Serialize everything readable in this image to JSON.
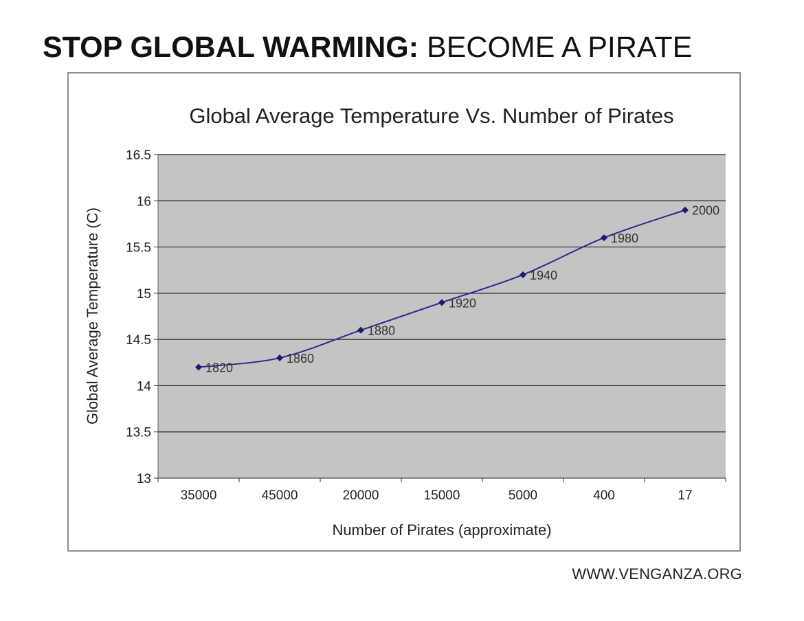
{
  "headline": {
    "bold": "STOP GLOBAL WARMING:",
    "light": " BECOME A PIRATE"
  },
  "credit": "WWW.VENGANZA.ORG",
  "chart_data": {
    "type": "line",
    "title": "Global Average Temperature Vs. Number of Pirates",
    "xlabel": "Number of Pirates (approximate)",
    "ylabel": "Global Average Temperature (C)",
    "categories": [
      "35000",
      "45000",
      "20000",
      "15000",
      "5000",
      "400",
      "17"
    ],
    "series": [
      {
        "values": [
          14.2,
          14.3,
          14.6,
          14.9,
          15.2,
          15.6,
          15.9
        ],
        "point_labels": [
          "1820",
          "1860",
          "1880",
          "1920",
          "1940",
          "1980",
          "2000"
        ]
      }
    ],
    "ylim": [
      13,
      16.5
    ],
    "yticks": [
      "13",
      "13.5",
      "14",
      "14.5",
      "15",
      "15.5",
      "16",
      "16.5"
    ],
    "grid": true,
    "legend": "none",
    "colors": {
      "line": "#2a2a8c",
      "plot_background": "#c4c4c4",
      "gridline": "#222222"
    }
  }
}
